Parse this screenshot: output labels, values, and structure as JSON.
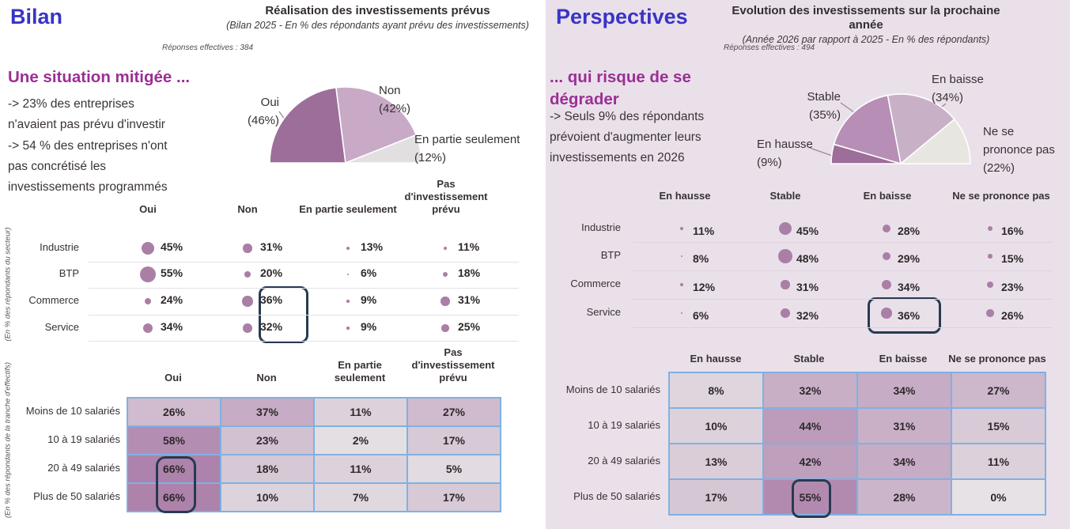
{
  "left": {
    "panel_title": "Bilan",
    "chart_title": "Réalisation des investissements prévus",
    "chart_subtitle": "(Bilan 2025 - En % des répondants ayant prévu des investissements)",
    "responses_note": "Réponses effectives : 384",
    "heading": "Une situation mitigée ...",
    "bullet1": "-> 23% des entreprises\nn'avaient pas prévu d'investir",
    "bullet2": "-> 54 % des entreprises n'ont\npas concrétisé les\ninvestissements programmés"
  },
  "right": {
    "panel_title": "Perspectives",
    "chart_title": "Evolution des investissements sur la prochaine année",
    "chart_subtitle": "(Année 2026 par rapport à 2025 - En % des répondants)",
    "responses_note": "Réponses effectives : 494",
    "heading": "... qui risque de se\ndégrader",
    "bullet1": "-> Seuls 9% des répondants\nprévoient d'augmenter leurs\ninvestissements en 2026"
  },
  "colors": {
    "accent_blue_title": "#3934c6",
    "accent_magenta": "#9b2f95",
    "bubble_mauve": "#aa7fa6",
    "highlight_navy": "#273a52",
    "table_border_blue": "#7fb1e3",
    "right_panel_bg": "#eae0ea",
    "heat_light": "#e6e2e5",
    "heat_dark": "#ad82ab"
  },
  "chart_data": [
    {
      "id": "bilan-realisation-pie",
      "type": "pie",
      "shape": "semicircle",
      "title": "Réalisation des investissements prévus",
      "subtitle": "(Bilan 2025 - En % des répondants ayant prévu des investissements)",
      "note": "Réponses effectives : 384",
      "labels": [
        "Oui",
        "Non",
        "En partie seulement"
      ],
      "values": [
        46,
        42,
        12
      ],
      "colors": [
        "#9c6e99",
        "#c8a9c6",
        "#e2dfe1"
      ],
      "callouts": [
        "Oui\n(46%)",
        "Non\n(42%)",
        "En partie seulement\n(12%)"
      ]
    },
    {
      "id": "bilan-secteur-bubbles",
      "type": "scatter",
      "style": "bubble-matrix",
      "unit": "%",
      "axis_note": "(En % des répondants du secteur)",
      "categories": [
        "Oui",
        "Non",
        "En partie seulement",
        "Pas d'investissement prévu"
      ],
      "column_headers": [
        "Oui",
        "Non",
        "En partie seulement",
        "Pas\nd'investissement\nprévu"
      ],
      "series": [
        {
          "name": "Industrie",
          "values": [
            45,
            31,
            13,
            11
          ]
        },
        {
          "name": "BTP",
          "values": [
            55,
            20,
            6,
            18
          ]
        },
        {
          "name": "Commerce",
          "values": [
            24,
            36,
            9,
            31
          ]
        },
        {
          "name": "Service",
          "values": [
            34,
            32,
            9,
            25
          ]
        }
      ],
      "highlight": "Encadré : colonne Non — Commerce 36% et Service 32%"
    },
    {
      "id": "bilan-effectifs-heatmap",
      "type": "heatmap",
      "unit": "%",
      "axis_note": "(En % des répondants de la tranche d'effectifs)",
      "categories": [
        "Oui",
        "Non",
        "En partie seulement",
        "Pas d'investissement prévu"
      ],
      "column_headers": [
        "Oui",
        "Non",
        "En partie\nseulement",
        "Pas\nd'investissement\nprévu"
      ],
      "rows": [
        {
          "label": "Moins de 10 salariés",
          "values": [
            26,
            37,
            11,
            27
          ]
        },
        {
          "label": "10 à 19 salariés",
          "values": [
            58,
            23,
            2,
            17
          ]
        },
        {
          "label": "20 à 49 salariés",
          "values": [
            66,
            18,
            11,
            5
          ]
        },
        {
          "label": "Plus de 50 salariés",
          "values": [
            66,
            10,
            7,
            17
          ]
        }
      ],
      "highlight": "Encadré : colonne Oui — 20 à 49 salariés 66% et Plus de 50 salariés 66%"
    },
    {
      "id": "perspectives-evolution-pie",
      "type": "pie",
      "shape": "semicircle",
      "title": "Evolution des investissements sur la prochaine année",
      "subtitle": "(Année 2026 par rapport à 2025 - En % des répondants)",
      "note": "Réponses effectives : 494",
      "labels": [
        "En hausse",
        "Stable",
        "En baisse",
        "Ne se prononce pas"
      ],
      "values": [
        9,
        35,
        34,
        22
      ],
      "colors": [
        "#9c6e99",
        "#b78eb5",
        "#c8b1c7",
        "#e7e6e1"
      ],
      "callouts": [
        "En hausse\n(9%)",
        "Stable\n(35%)",
        "En baisse\n(34%)",
        "Ne se\nprononce pas\n(22%)"
      ]
    },
    {
      "id": "perspectives-secteur-bubbles",
      "type": "scatter",
      "style": "bubble-matrix",
      "unit": "%",
      "categories": [
        "En hausse",
        "Stable",
        "En baisse",
        "Ne se prononce pas"
      ],
      "column_headers": [
        "En hausse",
        "Stable",
        "En baisse",
        "Ne se prononce pas"
      ],
      "series": [
        {
          "name": "Industrie",
          "values": [
            11,
            45,
            28,
            16
          ]
        },
        {
          "name": "BTP",
          "values": [
            8,
            48,
            29,
            15
          ]
        },
        {
          "name": "Commerce",
          "values": [
            12,
            31,
            34,
            23
          ]
        },
        {
          "name": "Service",
          "values": [
            6,
            32,
            36,
            26
          ]
        }
      ],
      "highlight": "Encadré : Service — En baisse 36%"
    },
    {
      "id": "perspectives-effectifs-heatmap",
      "type": "heatmap",
      "unit": "%",
      "categories": [
        "En hausse",
        "Stable",
        "En baisse",
        "Ne se prononce pas"
      ],
      "column_headers": [
        "En hausse",
        "Stable",
        "En baisse",
        "Ne se prononce pas"
      ],
      "rows": [
        {
          "label": "Moins de 10 salariés",
          "values": [
            8,
            32,
            34,
            27
          ]
        },
        {
          "label": "10 à 19 salariés",
          "values": [
            10,
            44,
            31,
            15
          ]
        },
        {
          "label": "20 à 49 salariés",
          "values": [
            13,
            42,
            34,
            11
          ]
        },
        {
          "label": "Plus de 50 salariés",
          "values": [
            17,
            55,
            28,
            0
          ]
        }
      ],
      "highlight": "Encadré : Plus de 50 salariés — Stable 55%"
    }
  ]
}
